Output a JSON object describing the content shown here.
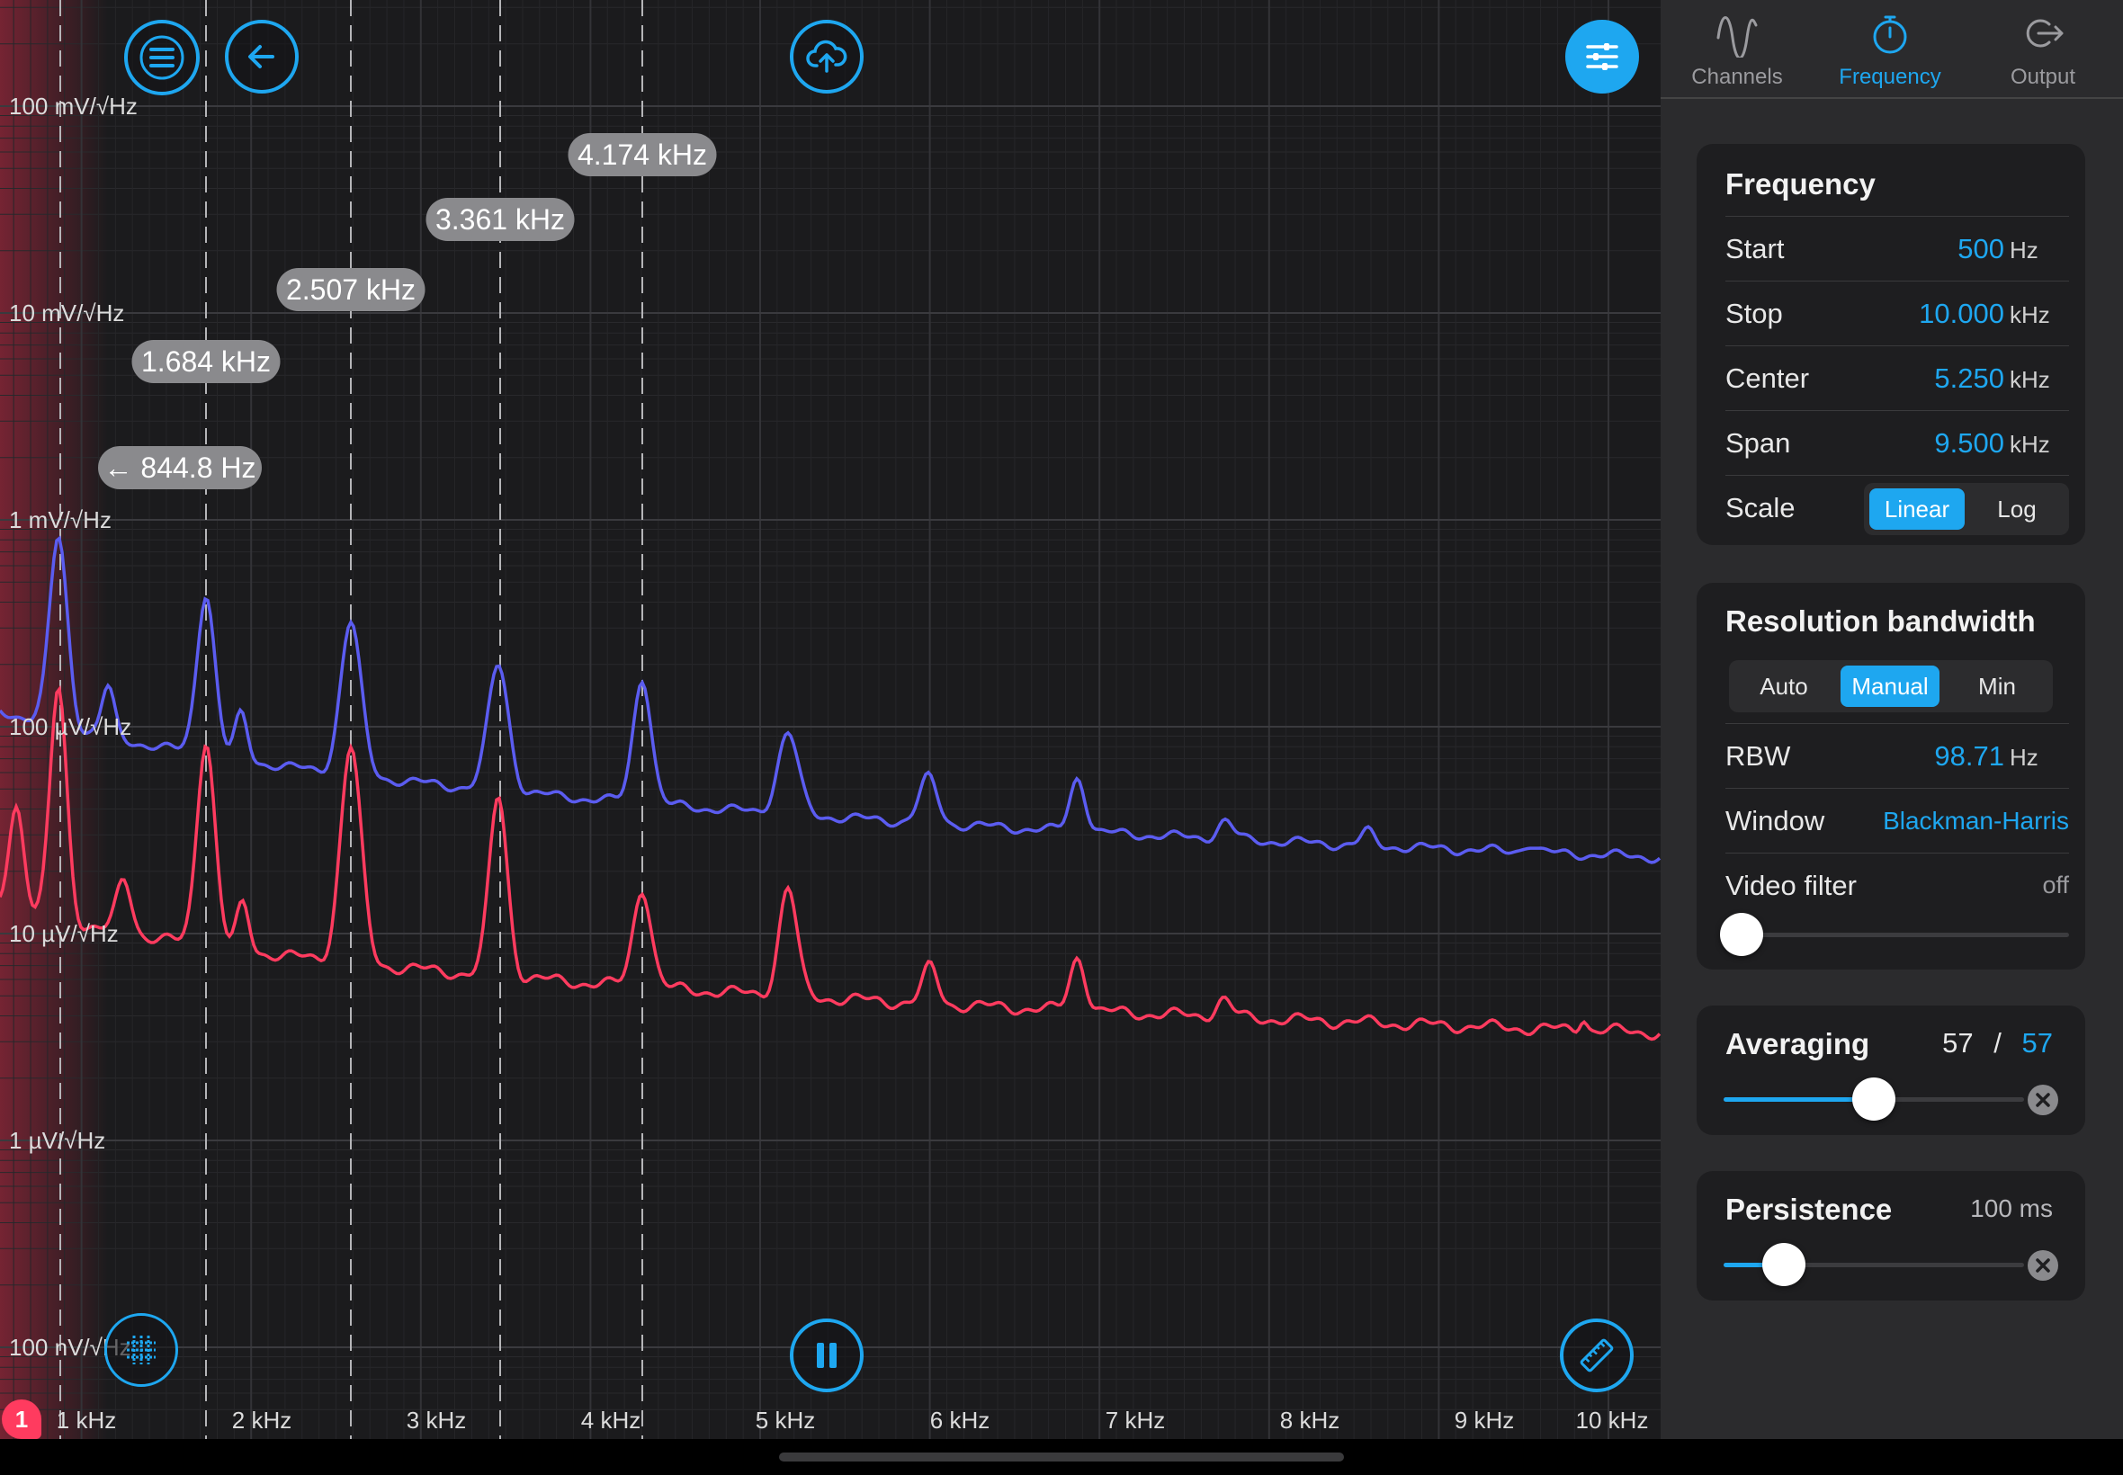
{
  "plot": {
    "y_axis_labels": [
      "100 mV/√Hz",
      "10 mV/√Hz",
      "1 mV/√Hz",
      "100 µV/√Hz",
      "10 µV/√Hz",
      "1 µV/√Hz",
      "100 nV/√Hz"
    ],
    "x_axis_labels": [
      "1 kHz",
      "2 kHz",
      "3 kHz",
      "4 kHz",
      "5 kHz",
      "6 kHz",
      "7 kHz",
      "8 kHz",
      "9 kHz",
      "10 kHz"
    ],
    "markers": [
      {
        "label": "← 844.8 Hz",
        "freq_hz": 844.8
      },
      {
        "label": "1.684 kHz",
        "freq_hz": 1684
      },
      {
        "label": "2.507 kHz",
        "freq_hz": 2507
      },
      {
        "label": "3.361 kHz",
        "freq_hz": 3361
      },
      {
        "label": "4.174 kHz",
        "freq_hz": 4174
      }
    ],
    "channel_badge": "1",
    "colors": {
      "channel_blue": "#5b5cf0",
      "channel_red": "#ff3b5f",
      "accent": "#1ea7f0"
    }
  },
  "buttons": {
    "menu": "menu-icon",
    "back": "back-arrow-icon",
    "cloud": "cloud-upload-icon",
    "settings": "sliders-icon",
    "grid": "grid-crosshair-icon",
    "pause": "pause-icon",
    "measure": "ruler-icon"
  },
  "tabs": [
    {
      "label": "Channels",
      "icon": "sine-wave-icon",
      "active": false
    },
    {
      "label": "Frequency",
      "icon": "stopwatch-icon",
      "active": true
    },
    {
      "label": "Output",
      "icon": "output-arrow-icon",
      "active": false
    }
  ],
  "frequency": {
    "title": "Frequency",
    "start": {
      "label": "Start",
      "value": "500",
      "unit": "Hz"
    },
    "stop": {
      "label": "Stop",
      "value": "10.000",
      "unit": "kHz"
    },
    "center": {
      "label": "Center",
      "value": "5.250",
      "unit": "kHz"
    },
    "span": {
      "label": "Span",
      "value": "9.500",
      "unit": "kHz"
    },
    "scale": {
      "label": "Scale",
      "options": [
        "Linear",
        "Log"
      ],
      "selected": "Linear"
    }
  },
  "rbw": {
    "title": "Resolution bandwidth",
    "modes": [
      "Auto",
      "Manual",
      "Min"
    ],
    "selected": "Manual",
    "rbw": {
      "label": "RBW",
      "value": "98.71",
      "unit": "Hz"
    },
    "window": {
      "label": "Window",
      "value": "Blackman-Harris"
    },
    "video_filter": {
      "label": "Video filter",
      "value": "off",
      "level": 0
    }
  },
  "averaging": {
    "title": "Averaging",
    "current": "57",
    "sep": "/",
    "target": "57",
    "level": 0.5
  },
  "persistence": {
    "title": "Persistence",
    "value": "100 ms",
    "level": 0.2
  }
}
